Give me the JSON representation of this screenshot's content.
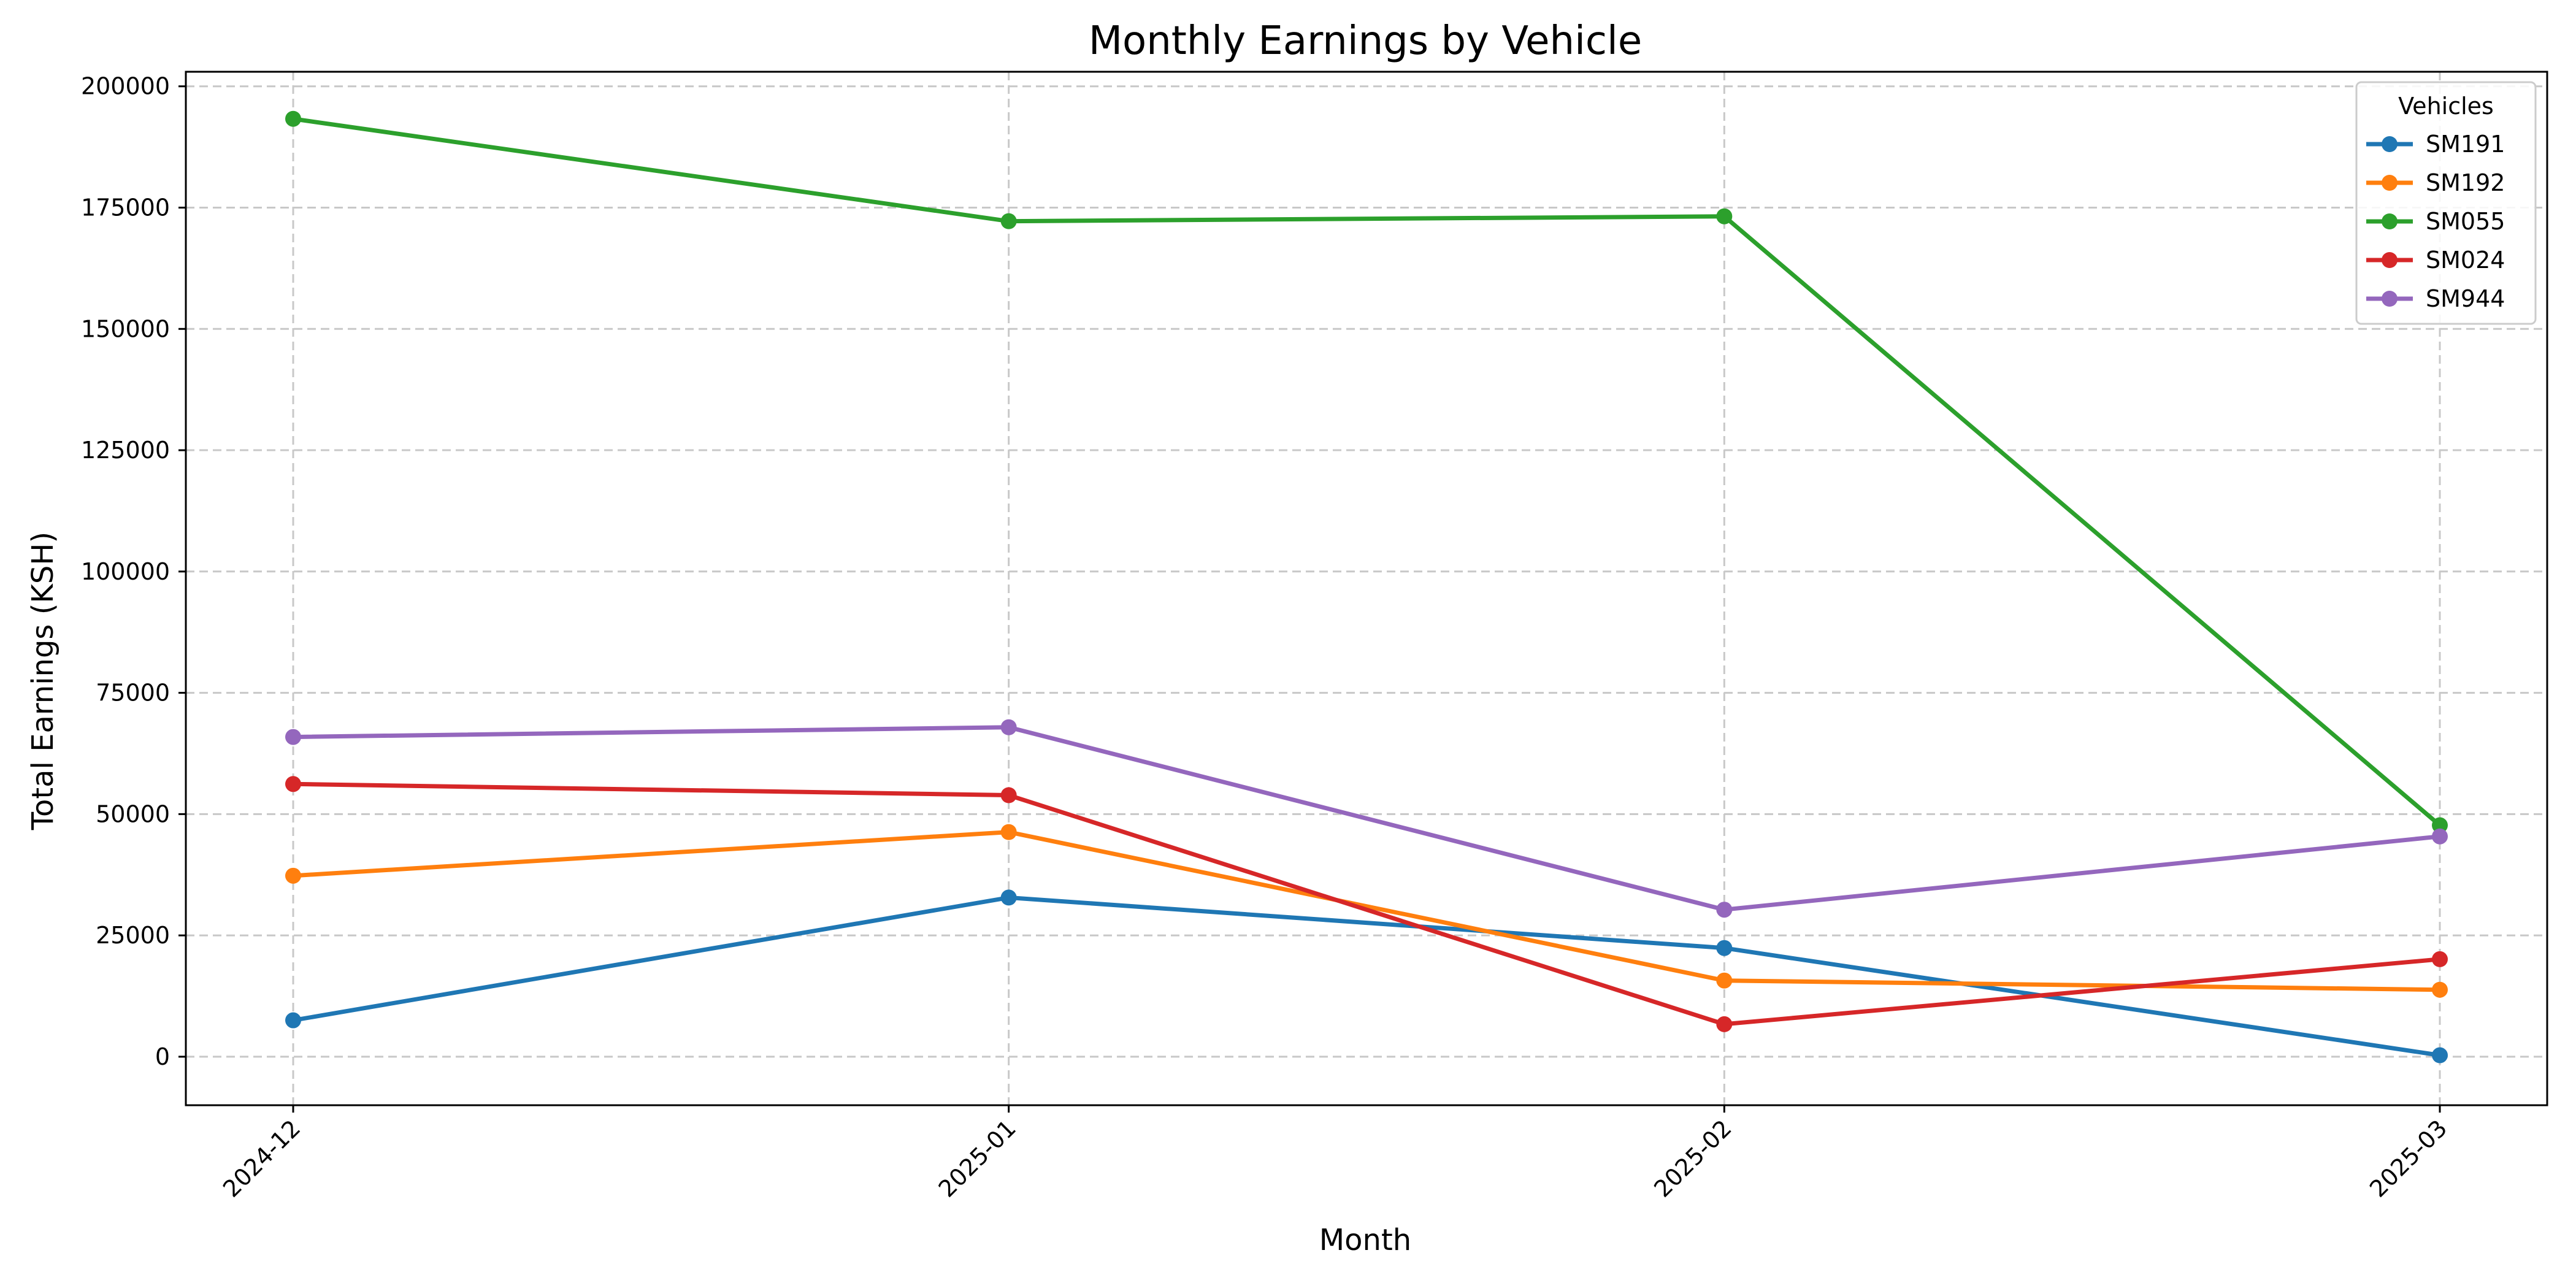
{
  "chart_data": {
    "type": "line",
    "title": "Monthly Earnings by Vehicle",
    "xlabel": "Month",
    "ylabel": "Total Earnings (KSH)",
    "categories": [
      "2024-12",
      "2025-01",
      "2025-02",
      "2025-03"
    ],
    "ylim": [
      -10000,
      203000
    ],
    "yticks": [
      0,
      25000,
      50000,
      75000,
      100000,
      125000,
      150000,
      175000,
      200000
    ],
    "grid": true,
    "legend": {
      "title": "Vehicles",
      "placement": "top-right"
    },
    "series": [
      {
        "name": "SM191",
        "color": "#1f77b4",
        "values": [
          7500,
          32800,
          22400,
          300
        ]
      },
      {
        "name": "SM192",
        "color": "#ff7f0e",
        "values": [
          37300,
          46300,
          15700,
          13800
        ]
      },
      {
        "name": "SM055",
        "color": "#2ca02c",
        "values": [
          193300,
          172200,
          173200,
          47700
        ]
      },
      {
        "name": "SM024",
        "color": "#d62728",
        "values": [
          56200,
          53900,
          6700,
          20100
        ]
      },
      {
        "name": "SM944",
        "color": "#9467bd",
        "values": [
          65900,
          67900,
          30300,
          45400
        ]
      }
    ]
  }
}
